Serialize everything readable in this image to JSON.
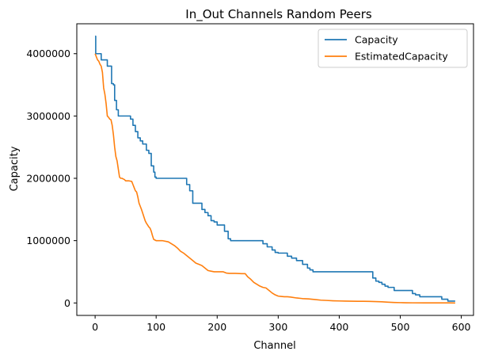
{
  "chart_data": {
    "type": "line",
    "title": "In_Out Channels Random Peers",
    "xlabel": "Channel",
    "ylabel": "Capacity",
    "xlim": [
      -30,
      620
    ],
    "ylim": [
      -200000,
      4480000
    ],
    "xticks": [
      0,
      100,
      200,
      300,
      400,
      500,
      600
    ],
    "yticks": [
      0,
      1000000,
      2000000,
      3000000,
      4000000
    ],
    "xtick_labels": [
      "0",
      "100",
      "200",
      "300",
      "400",
      "500",
      "600"
    ],
    "ytick_labels": [
      "0",
      "1000000",
      "2000000",
      "3000000",
      "4000000"
    ],
    "grid": false,
    "legend_position": "top-right",
    "series": [
      {
        "name": "Capacity",
        "color": "#1f77b4",
        "x": [
          0,
          1,
          1,
          10,
          10,
          20,
          20,
          27,
          27,
          30,
          30,
          32,
          32,
          35,
          35,
          38,
          38,
          58,
          58,
          62,
          62,
          66,
          66,
          70,
          70,
          74,
          74,
          78,
          78,
          84,
          84,
          88,
          88,
          92,
          92,
          96,
          96,
          98,
          98,
          100,
          100,
          103,
          103,
          150,
          150,
          155,
          155,
          160,
          160,
          165,
          165,
          175,
          175,
          180,
          180,
          185,
          185,
          190,
          190,
          195,
          195,
          200,
          200,
          212,
          212,
          218,
          218,
          222,
          222,
          275,
          275,
          282,
          282,
          290,
          290,
          295,
          295,
          300,
          300,
          315,
          315,
          322,
          322,
          330,
          330,
          340,
          340,
          348,
          348,
          352,
          352,
          357,
          357,
          450,
          450,
          455,
          455,
          460,
          460,
          465,
          465,
          470,
          470,
          475,
          475,
          480,
          480,
          490,
          490,
          508,
          508,
          520,
          520,
          525,
          525,
          532,
          532,
          560,
          560,
          568,
          568,
          578,
          578,
          590
        ],
        "y": [
          4280000,
          4280000,
          4000000,
          4000000,
          3900000,
          3900000,
          3800000,
          3800000,
          3520000,
          3520000,
          3500000,
          3500000,
          3250000,
          3250000,
          3100000,
          3100000,
          3000000,
          3000000,
          2950000,
          2950000,
          2850000,
          2850000,
          2750000,
          2750000,
          2650000,
          2650000,
          2600000,
          2600000,
          2550000,
          2550000,
          2450000,
          2450000,
          2400000,
          2400000,
          2200000,
          2200000,
          2100000,
          2100000,
          2020000,
          2020000,
          2000000,
          2000000,
          2000000,
          2000000,
          1900000,
          1900000,
          1800000,
          1800000,
          1600000,
          1600000,
          1600000,
          1600000,
          1500000,
          1500000,
          1450000,
          1450000,
          1400000,
          1400000,
          1320000,
          1320000,
          1300000,
          1300000,
          1250000,
          1250000,
          1150000,
          1150000,
          1030000,
          1030000,
          1000000,
          1000000,
          950000,
          950000,
          900000,
          900000,
          850000,
          850000,
          810000,
          810000,
          800000,
          800000,
          750000,
          750000,
          720000,
          720000,
          680000,
          680000,
          620000,
          620000,
          560000,
          560000,
          530000,
          530000,
          500000,
          500000,
          500000,
          500000,
          400000,
          400000,
          350000,
          350000,
          330000,
          330000,
          300000,
          300000,
          270000,
          270000,
          250000,
          250000,
          200000,
          200000,
          200000,
          200000,
          150000,
          150000,
          130000,
          130000,
          100000,
          100000,
          100000,
          100000,
          60000,
          60000,
          30000,
          30000
        ]
      },
      {
        "name": "EstimatedCapacity",
        "color": "#ff7f0e",
        "x": [
          0,
          2,
          4,
          6,
          8,
          10,
          12,
          14,
          16,
          18,
          20,
          22,
          24,
          26,
          28,
          30,
          32,
          34,
          36,
          38,
          40,
          42,
          44,
          46,
          48,
          50,
          55,
          60,
          62,
          64,
          66,
          68,
          70,
          72,
          74,
          76,
          78,
          80,
          82,
          84,
          86,
          88,
          90,
          92,
          94,
          96,
          98,
          100,
          102,
          110,
          120,
          125,
          130,
          135,
          140,
          145,
          150,
          155,
          160,
          165,
          170,
          175,
          180,
          185,
          190,
          195,
          200,
          205,
          210,
          215,
          220,
          230,
          240,
          246,
          250,
          255,
          260,
          265,
          270,
          275,
          280,
          285,
          290,
          295,
          300,
          305,
          310,
          315,
          320,
          330,
          340,
          350,
          360,
          370,
          380,
          390,
          400,
          410,
          420,
          430,
          440,
          450,
          460,
          470,
          480,
          490,
          500,
          510,
          520,
          540,
          560,
          580,
          590
        ],
        "y": [
          4000000,
          3950000,
          3900000,
          3880000,
          3830000,
          3800000,
          3700000,
          3450000,
          3350000,
          3200000,
          3000000,
          2980000,
          2950000,
          2940000,
          2850000,
          2700000,
          2500000,
          2350000,
          2280000,
          2150000,
          2020000,
          2000000,
          2000000,
          1990000,
          1980000,
          1960000,
          1960000,
          1950000,
          1900000,
          1850000,
          1800000,
          1780000,
          1700000,
          1600000,
          1550000,
          1500000,
          1440000,
          1380000,
          1320000,
          1280000,
          1250000,
          1220000,
          1200000,
          1150000,
          1080000,
          1020000,
          1010000,
          1000000,
          1000000,
          1000000,
          980000,
          950000,
          920000,
          880000,
          830000,
          800000,
          760000,
          720000,
          680000,
          640000,
          620000,
          600000,
          560000,
          520000,
          510000,
          500000,
          500000,
          500000,
          500000,
          480000,
          475000,
          475000,
          470000,
          470000,
          420000,
          380000,
          330000,
          300000,
          270000,
          250000,
          240000,
          200000,
          160000,
          130000,
          110000,
          105000,
          100000,
          100000,
          95000,
          80000,
          70000,
          65000,
          55000,
          45000,
          40000,
          35000,
          32000,
          30000,
          28000,
          27000,
          26000,
          25000,
          22000,
          18000,
          12000,
          8000,
          5000,
          3000,
          2000,
          1000,
          1000,
          500,
          0
        ]
      }
    ]
  }
}
